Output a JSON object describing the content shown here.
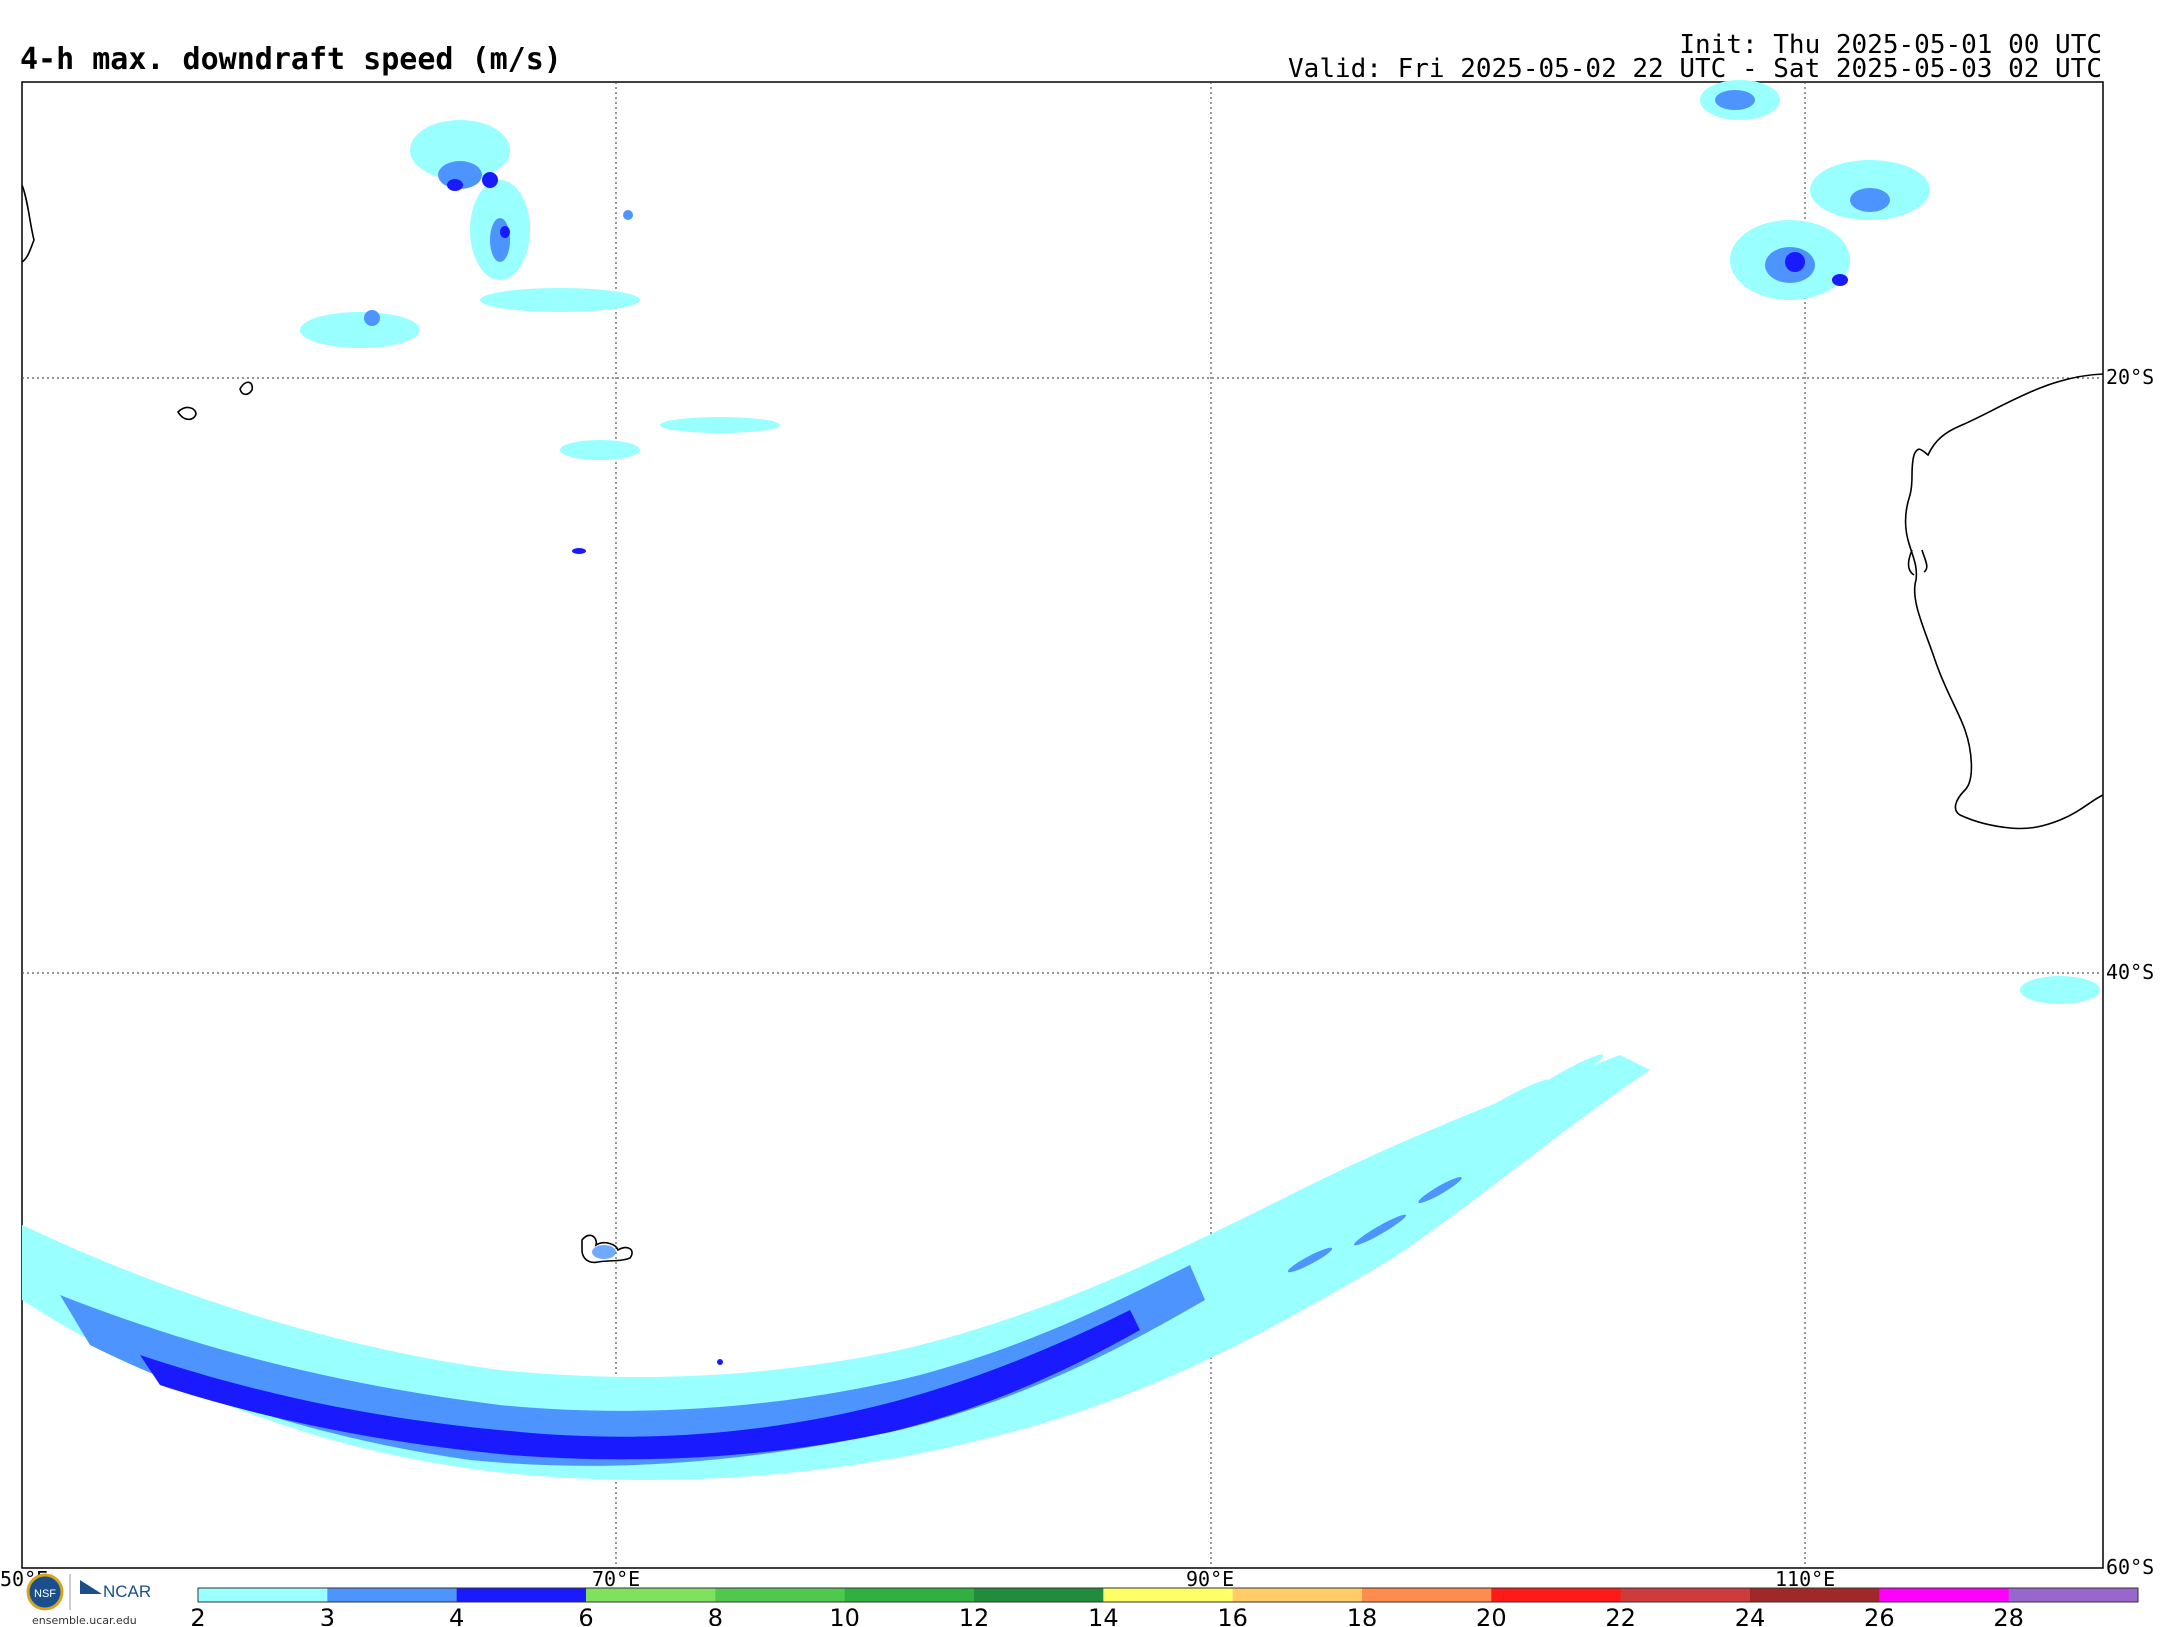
{
  "header": {
    "title": "4-h max. downdraft speed (m/s)",
    "init": "Init: Thu 2025-05-01 00 UTC",
    "valid": "Valid: Fri 2025-05-02 22 UTC - Sat 2025-05-03 02 UTC"
  },
  "map": {
    "lon_labels": [
      "50°E",
      "70°E",
      "90°E",
      "110°E"
    ],
    "lat_labels": [
      "20°S",
      "40°S",
      "60°S"
    ],
    "lon_range": [
      50,
      120
    ],
    "lat_range": [
      -60,
      -10
    ]
  },
  "colorbar": {
    "labels": [
      "2",
      "3",
      "4",
      "6",
      "8",
      "10",
      "12",
      "14",
      "16",
      "18",
      "20",
      "22",
      "24",
      "26",
      "28"
    ],
    "colors": [
      "#99ffff",
      "#4d94ff",
      "#1a1aff",
      "#80e060",
      "#50c850",
      "#30b040",
      "#208c3c",
      "#ffff66",
      "#ffcc66",
      "#ff8c4d",
      "#ff1a1a",
      "#cc3c3c",
      "#a02828",
      "#ff00ff",
      "#9966cc"
    ]
  },
  "logo": {
    "ncar": "NCAR",
    "nsf": "NSF",
    "site": "ensemble.ucar.edu"
  }
}
